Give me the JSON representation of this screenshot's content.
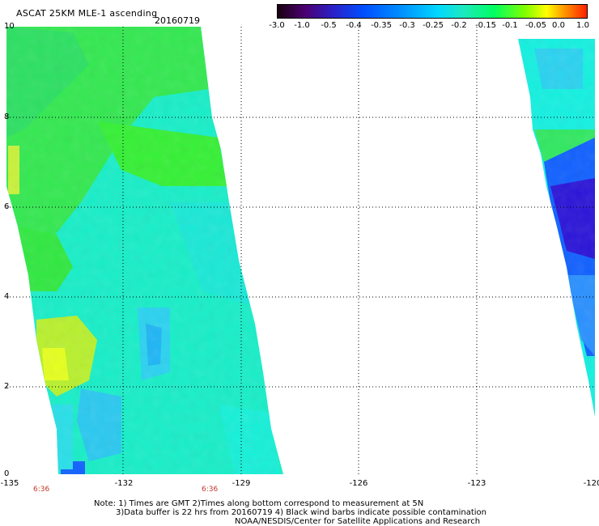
{
  "header": {
    "title": "ASCAT 25KM MLE-1 ascending",
    "date": "20160719"
  },
  "colorbar": {
    "labels": [
      "-3.0",
      "-1.0",
      "-0.5",
      "-0.4",
      "-0.35",
      "-0.3",
      "-0.25",
      "-0.2",
      "-0.15",
      "-0.1",
      "-0.05",
      "0.0",
      "1.0"
    ]
  },
  "axes": {
    "lat_labels": [
      "10",
      "8",
      "6",
      "4",
      "2",
      "0"
    ],
    "lon_labels": [
      "-135",
      "-132",
      "-129",
      "-126",
      "-123",
      "-120"
    ],
    "time_labels": [
      "6:36",
      "6:36"
    ]
  },
  "map_data": {
    "lon_range": [
      -135,
      -120
    ],
    "lat_range": [
      0,
      10
    ],
    "colors": {
      "green": "#2ee84a",
      "cyan": "#14f0dc",
      "lightblue": "#2ad2f0",
      "yellow": "#e6ff1e",
      "blue": "#1060ff",
      "darkblue": "#2a10d0"
    }
  },
  "footer": {
    "note_line1": "Note: 1) Times are GMT 2)Times along bottom correspond to measurement at 5N",
    "note_line2": "3)Data buffer is 22 hrs from 20160719 4) Black wind barbs indicate possible contamination",
    "credit": "NOAA/NESDIS/Center for Satellite Applications and Research"
  }
}
